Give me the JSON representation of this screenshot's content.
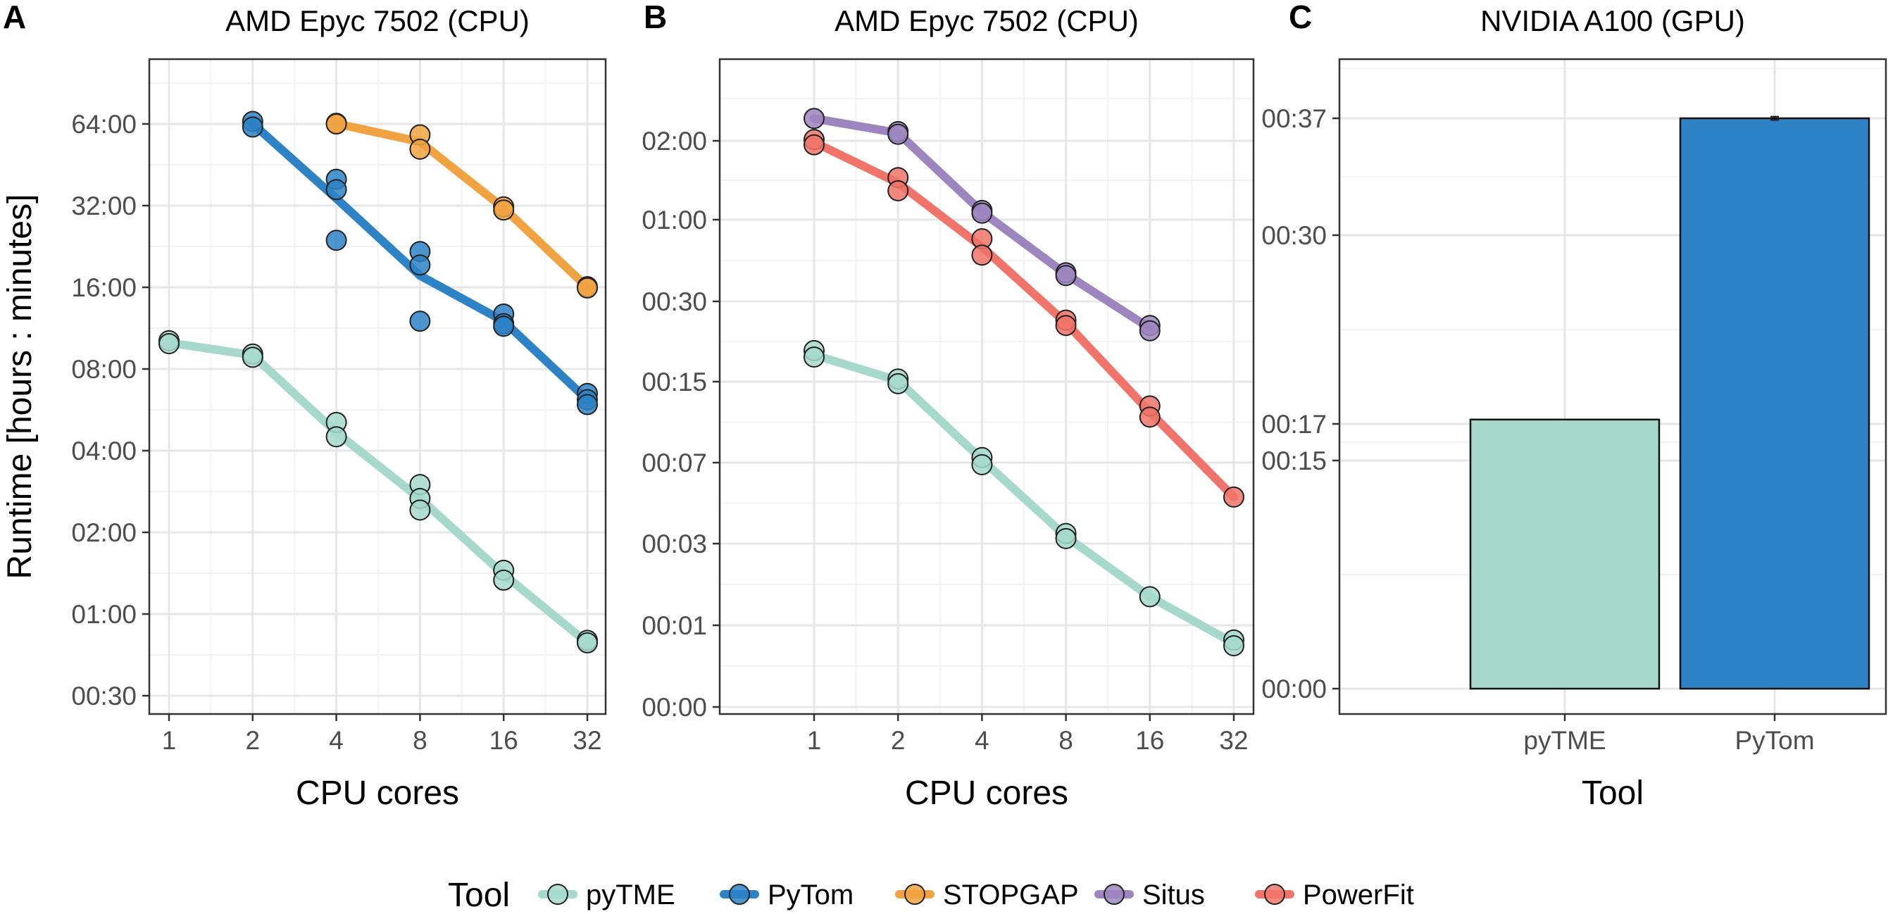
{
  "legend": {
    "title": "Tool",
    "items": [
      {
        "name": "pyTME",
        "color": "#a6d9cb"
      },
      {
        "name": "PyTom",
        "color": "#2d83c6"
      },
      {
        "name": "STOPGAP",
        "color": "#f1a342"
      },
      {
        "name": "Situs",
        "color": "#9d85c0"
      },
      {
        "name": "PowerFit",
        "color": "#f07469"
      }
    ]
  },
  "chart_data": [
    {
      "panel": "A",
      "type": "line",
      "title": "AMD Epyc 7502 (CPU)",
      "xlabel": "CPU cores",
      "ylabel": "Runtime [hours : minutes]",
      "x_scale": "log2",
      "y_scale": "log2",
      "x_ticks": [
        1,
        2,
        4,
        8,
        16,
        32
      ],
      "x_tick_labels": [
        "1",
        "2",
        "4",
        "8",
        "16",
        "32"
      ],
      "y_ticks_minutes": [
        30,
        60,
        120,
        240,
        480,
        960,
        1920,
        3840
      ],
      "y_tick_labels": [
        "00:30",
        "01:00",
        "02:00",
        "04:00",
        "08:00",
        "16:00",
        "32:00",
        "64:00"
      ],
      "grid": true,
      "series": [
        {
          "name": "pyTME",
          "line": [
            [
              1,
              600
            ],
            [
              2,
              540
            ],
            [
              4,
              280
            ],
            [
              8,
              160
            ],
            [
              16,
              84
            ],
            [
              32,
              47
            ]
          ],
          "points": [
            [
              1,
              610
            ],
            [
              1,
              595
            ],
            [
              2,
              545
            ],
            [
              2,
              530
            ],
            [
              4,
              305
            ],
            [
              4,
              270
            ],
            [
              8,
              180
            ],
            [
              8,
              160
            ],
            [
              8,
              145
            ],
            [
              16,
              87
            ],
            [
              16,
              80
            ],
            [
              32,
              48
            ],
            [
              32,
              47
            ]
          ]
        },
        {
          "name": "PyTom",
          "line": [
            [
              2,
              3850
            ],
            [
              4,
              2040
            ],
            [
              8,
              1060
            ],
            [
              16,
              720
            ],
            [
              32,
              370
            ]
          ],
          "points": [
            [
              2,
              3920
            ],
            [
              2,
              3740
            ],
            [
              4,
              2400
            ],
            [
              4,
              2200
            ],
            [
              4,
              1430
            ],
            [
              8,
              1300
            ],
            [
              8,
              1160
            ],
            [
              8,
              720
            ],
            [
              16,
              765
            ],
            [
              16,
              705
            ],
            [
              16,
              690
            ],
            [
              32,
              390
            ],
            [
              32,
              370
            ],
            [
              32,
              355
            ]
          ]
        },
        {
          "name": "STOPGAP",
          "line": [
            [
              4,
              3850
            ],
            [
              8,
              3300
            ],
            [
              16,
              1880
            ],
            [
              32,
              960
            ]
          ],
          "points": [
            [
              4,
              3860
            ],
            [
              4,
              3840
            ],
            [
              8,
              3500
            ],
            [
              8,
              3100
            ],
            [
              16,
              1900
            ],
            [
              16,
              1850
            ],
            [
              32,
              965
            ],
            [
              32,
              955
            ]
          ]
        }
      ]
    },
    {
      "panel": "B",
      "type": "line",
      "title": "AMD Epyc 7502 (CPU)",
      "xlabel": "CPU cores",
      "ylabel": "",
      "x_scale": "log2",
      "x_ticks": [
        1,
        2,
        4,
        8,
        16,
        32
      ],
      "x_tick_labels": [
        "1",
        "2",
        "4",
        "8",
        "16",
        "32"
      ],
      "y_ticks_minutes": [
        0,
        1,
        3,
        7,
        15,
        30,
        60,
        120
      ],
      "y_tick_labels": [
        "00:00",
        "00:01",
        "00:03",
        "00:07",
        "00:15",
        "00:30",
        "01:00",
        "02:00"
      ],
      "grid": true,
      "series": [
        {
          "name": "pyTME",
          "line": [
            [
              1,
              20
            ],
            [
              2,
              15.2
            ],
            [
              4,
              7.3
            ],
            [
              8,
              3.35
            ],
            [
              16,
              1.7
            ],
            [
              32,
              0.78
            ]
          ],
          "points": [
            [
              1,
              20.8
            ],
            [
              1,
              19.6
            ],
            [
              2,
              15.5
            ],
            [
              2,
              14.8
            ],
            [
              4,
              7.5
            ],
            [
              4,
              6.9
            ],
            [
              8,
              3.5
            ],
            [
              8,
              3.25
            ],
            [
              16,
              1.7
            ],
            [
              32,
              0.82
            ],
            [
              32,
              0.75
            ]
          ]
        },
        {
          "name": "Situs",
          "line": [
            [
              1,
              137
            ],
            [
              2,
              126
            ],
            [
              4,
              66
            ],
            [
              8,
              40
            ],
            [
              16,
              25
            ]
          ],
          "points": [
            [
              1,
              137
            ],
            [
              2,
              127
            ],
            [
              2,
              125
            ],
            [
              4,
              67
            ],
            [
              4,
              65
            ],
            [
              8,
              40.5
            ],
            [
              8,
              39.5
            ],
            [
              16,
              25.5
            ],
            [
              16,
              24.5
            ]
          ]
        },
        {
          "name": "PowerFit",
          "line": [
            [
              1,
              119
            ],
            [
              2,
              88
            ],
            [
              4,
              50
            ],
            [
              8,
              26
            ],
            [
              16,
              12
            ],
            [
              32,
              5.3
            ]
          ],
          "points": [
            [
              1,
              121
            ],
            [
              1,
              117
            ],
            [
              2,
              92
            ],
            [
              2,
              82
            ],
            [
              4,
              53
            ],
            [
              4,
              47
            ],
            [
              8,
              26.5
            ],
            [
              8,
              25.5
            ],
            [
              16,
              12.6
            ],
            [
              16,
              11.5
            ],
            [
              32,
              5.3
            ]
          ]
        }
      ]
    },
    {
      "panel": "C",
      "type": "bar",
      "title": "NVIDIA A100 (GPU)",
      "xlabel": "Tool",
      "ylabel": "",
      "categories": [
        "pyTME",
        "PyTom"
      ],
      "values_minutes": [
        17.3,
        37.0
      ],
      "error_minutes": [
        0,
        0.1
      ],
      "y_ticks_minutes": [
        0,
        15,
        17,
        30,
        37
      ],
      "y_tick_labels": [
        "00:00",
        "00:15",
        "00:17",
        "00:30",
        "00:37"
      ],
      "grid": true
    }
  ]
}
